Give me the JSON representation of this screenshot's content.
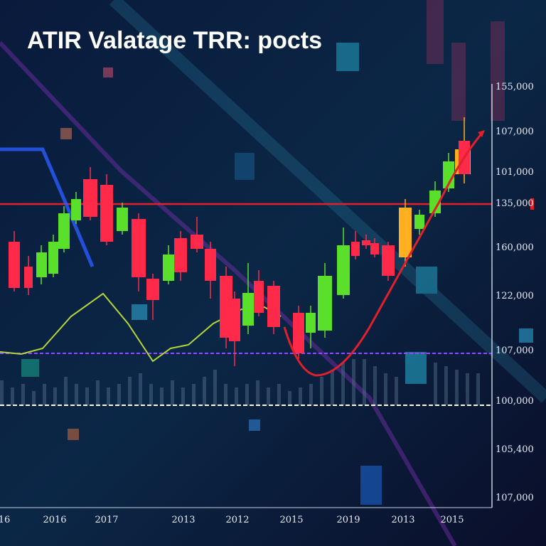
{
  "title": "ATIR Valatage TRR: pocts",
  "y_axis_labels": [
    "155,000",
    "107,000",
    "101,000",
    "135,000",
    "160,000",
    "122,000",
    "107,000",
    "100,000",
    "105,400",
    "107,000"
  ],
  "x_axis_labels": [
    "16",
    "2016",
    "2017",
    "2013",
    "2012",
    "2015",
    "2019",
    "2013",
    "2015"
  ]
}
